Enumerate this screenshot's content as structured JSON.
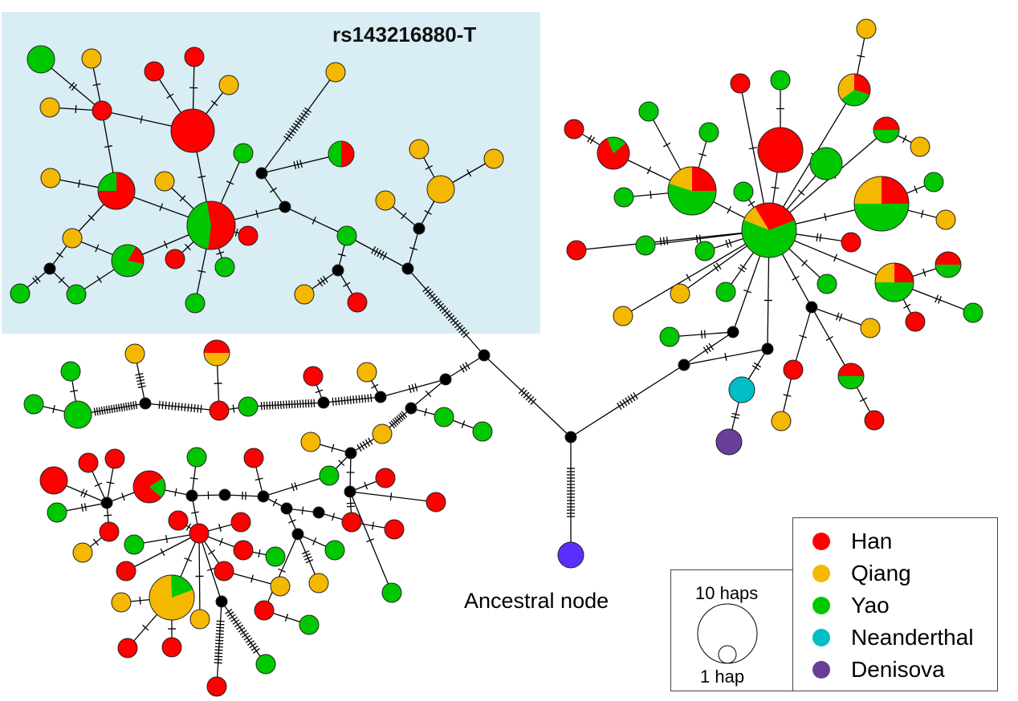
{
  "title": "rs143216880-T",
  "ancestral_label": "Ancestral node",
  "size_legend": {
    "large": "10 haps",
    "small": "1 hap"
  },
  "legend": [
    {
      "key": "H",
      "label": "Han",
      "color": "#ff0000"
    },
    {
      "key": "Q",
      "label": "Qiang",
      "color": "#f5b800"
    },
    {
      "key": "Y",
      "label": "Yao",
      "color": "#00c800"
    },
    {
      "key": "N",
      "label": "Neanderthal",
      "color": "#00bfc4"
    },
    {
      "key": "D",
      "label": "Denisova",
      "color": "#6a3d9a"
    }
  ],
  "colors": {
    "median": "#000000",
    "ancestral": "#5a2eff",
    "highlight_box": "#d9edf4"
  }
}
